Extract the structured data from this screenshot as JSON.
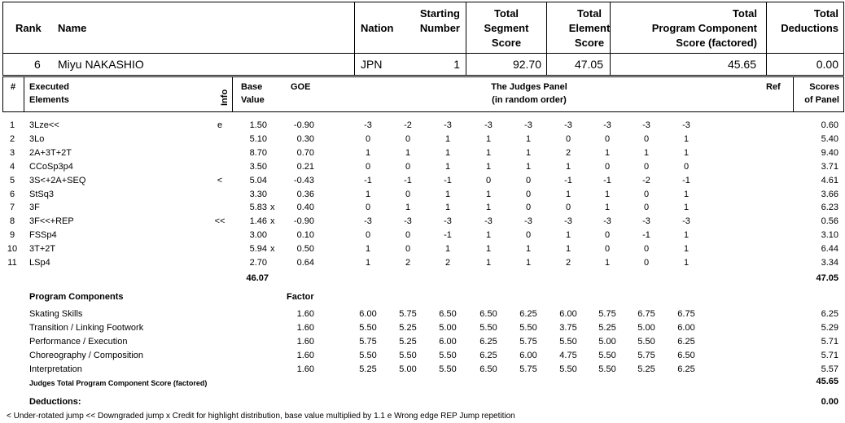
{
  "header": {
    "rank": "Rank",
    "name": "Name",
    "nation": "Nation",
    "starting_number_1": "Starting",
    "starting_number_2": "Number",
    "tss_1": "Total",
    "tss_2": "Segment",
    "tss_3": "Score",
    "tes_1": "Total",
    "tes_2": "Element",
    "tes_3": "Score",
    "pcs_1": "Total",
    "pcs_2": "Program  Component",
    "pcs_3": "Score (factored)",
    "ded_1": "Total",
    "ded_2": "Deductions"
  },
  "skater": {
    "rank": "6",
    "name": "Miyu NAKASHIO",
    "nation": "JPN",
    "starting_number": "1",
    "tss": "92.70",
    "tes": "47.05",
    "pcs": "45.65",
    "deductions": "0.00"
  },
  "elements_header": {
    "num": "#",
    "executed_1": "Executed",
    "executed_2": "Elements",
    "info": "Info",
    "base_1": "Base",
    "base_2": "Value",
    "goe": "GOE",
    "panel_1": "The Judges Panel",
    "panel_2": "(in random order)",
    "ref": "Ref",
    "scores_1": "Scores",
    "scores_2": "of Panel"
  },
  "elements": [
    {
      "n": "1",
      "name": "3Lze<<",
      "info": "e",
      "base": "1.50",
      "x": "",
      "goe": "-0.90",
      "j": [
        "-3",
        "-2",
        "-3",
        "-3",
        "-3",
        "-3",
        "-3",
        "-3",
        "-3"
      ],
      "score": "0.60"
    },
    {
      "n": "2",
      "name": "3Lo",
      "info": "",
      "base": "5.10",
      "x": "",
      "goe": "0.30",
      "j": [
        "0",
        "0",
        "1",
        "1",
        "1",
        "0",
        "0",
        "0",
        "1"
      ],
      "score": "5.40"
    },
    {
      "n": "3",
      "name": "2A+3T+2T",
      "info": "",
      "base": "8.70",
      "x": "",
      "goe": "0.70",
      "j": [
        "1",
        "1",
        "1",
        "1",
        "1",
        "2",
        "1",
        "1",
        "1"
      ],
      "score": "9.40"
    },
    {
      "n": "4",
      "name": "CCoSp3p4",
      "info": "",
      "base": "3.50",
      "x": "",
      "goe": "0.21",
      "j": [
        "0",
        "0",
        "1",
        "1",
        "1",
        "1",
        "0",
        "0",
        "0"
      ],
      "score": "3.71"
    },
    {
      "n": "5",
      "name": "3S<+2A+SEQ",
      "info": "<",
      "base": "5.04",
      "x": "",
      "goe": "-0.43",
      "j": [
        "-1",
        "-1",
        "-1",
        "0",
        "0",
        "-1",
        "-1",
        "-2",
        "-1"
      ],
      "score": "4.61"
    },
    {
      "n": "6",
      "name": "StSq3",
      "info": "",
      "base": "3.30",
      "x": "",
      "goe": "0.36",
      "j": [
        "1",
        "0",
        "1",
        "1",
        "0",
        "1",
        "1",
        "0",
        "1"
      ],
      "score": "3.66"
    },
    {
      "n": "7",
      "name": "3F",
      "info": "",
      "base": "5.83",
      "x": "x",
      "goe": "0.40",
      "j": [
        "0",
        "1",
        "1",
        "1",
        "0",
        "0",
        "1",
        "0",
        "1"
      ],
      "score": "6.23"
    },
    {
      "n": "8",
      "name": "3F<<+REP",
      "info": "<<",
      "base": "1.46",
      "x": "x",
      "goe": "-0.90",
      "j": [
        "-3",
        "-3",
        "-3",
        "-3",
        "-3",
        "-3",
        "-3",
        "-3",
        "-3"
      ],
      "score": "0.56"
    },
    {
      "n": "9",
      "name": "FSSp4",
      "info": "",
      "base": "3.00",
      "x": "",
      "goe": "0.10",
      "j": [
        "0",
        "0",
        "-1",
        "1",
        "0",
        "1",
        "0",
        "-1",
        "1"
      ],
      "score": "3.10"
    },
    {
      "n": "10",
      "name": "3T+2T",
      "info": "",
      "base": "5.94",
      "x": "x",
      "goe": "0.50",
      "j": [
        "1",
        "0",
        "1",
        "1",
        "1",
        "1",
        "0",
        "0",
        "1"
      ],
      "score": "6.44"
    },
    {
      "n": "11",
      "name": "LSp4",
      "info": "",
      "base": "2.70",
      "x": "",
      "goe": "0.64",
      "j": [
        "1",
        "2",
        "2",
        "1",
        "1",
        "2",
        "1",
        "0",
        "1"
      ],
      "score": "3.34"
    }
  ],
  "elements_totals": {
    "base": "46.07",
    "score": "47.05"
  },
  "components_header": {
    "label": "Program Components",
    "factor": "Factor"
  },
  "components": [
    {
      "name": "Skating Skills",
      "factor": "1.60",
      "j": [
        "6.00",
        "5.75",
        "6.50",
        "6.50",
        "6.25",
        "6.00",
        "5.75",
        "6.75",
        "6.75"
      ],
      "score": "6.25"
    },
    {
      "name": "Transition / Linking Footwork",
      "factor": "1.60",
      "j": [
        "5.50",
        "5.25",
        "5.00",
        "5.50",
        "5.50",
        "3.75",
        "5.25",
        "5.00",
        "6.00"
      ],
      "score": "5.29"
    },
    {
      "name": "Performance / Execution",
      "factor": "1.60",
      "j": [
        "5.75",
        "5.25",
        "6.00",
        "6.25",
        "5.75",
        "5.50",
        "5.00",
        "5.50",
        "6.25"
      ],
      "score": "5.71"
    },
    {
      "name": "Choreography / Composition",
      "factor": "1.60",
      "j": [
        "5.50",
        "5.50",
        "5.50",
        "6.25",
        "6.00",
        "4.75",
        "5.50",
        "5.75",
        "6.50"
      ],
      "score": "5.71"
    },
    {
      "name": "Interpretation",
      "factor": "1.60",
      "j": [
        "5.25",
        "5.00",
        "5.50",
        "6.50",
        "5.75",
        "5.50",
        "5.50",
        "5.25",
        "6.25"
      ],
      "score": "5.57"
    }
  ],
  "pcs_total": {
    "label": "Judges Total Program Component Score (factored)",
    "value": "45.65"
  },
  "deductions": {
    "label": "Deductions:",
    "value": "0.00"
  },
  "legend": "<  Under-rotated jump   <<  Downgraded jump   x  Credit for highlight distribution, base value multiplied by 1.1   e  Wrong edge   REP  Jump repetition"
}
